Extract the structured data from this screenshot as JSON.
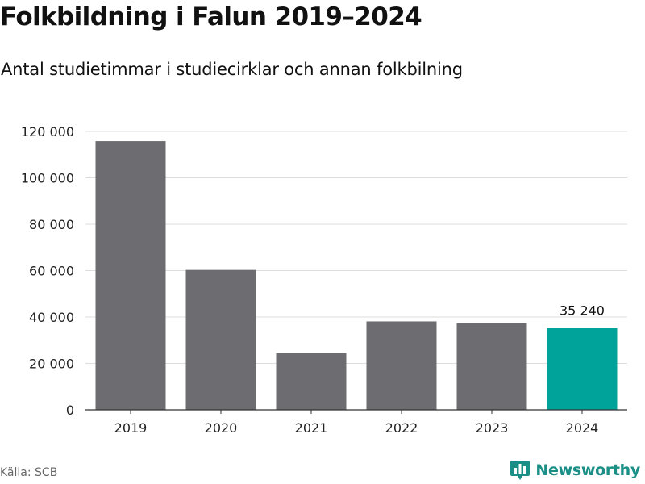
{
  "header": {
    "title": "Folkbildning i Falun 2019–2024",
    "subtitle": "Antal studietimmar i studiecirklar och annan folkbilning"
  },
  "footer": {
    "source": "Källa: SCB",
    "brand": "Newsworthy"
  },
  "colors": {
    "bar": "#6d6c71",
    "highlight": "#00a39a",
    "grid": "#dddddd",
    "axis": "#333333",
    "text": "#222222",
    "brand": "#1a8f86"
  },
  "chart_data": {
    "type": "bar",
    "title": "Folkbildning i Falun 2019–2024",
    "subtitle": "Antal studietimmar i studiecirklar och annan folkbilning",
    "xlabel": "",
    "ylabel": "",
    "categories": [
      "2019",
      "2020",
      "2021",
      "2022",
      "2023",
      "2024"
    ],
    "values": [
      115800,
      60300,
      24500,
      38100,
      37500,
      35240
    ],
    "highlight_category": "2024",
    "data_labels": [
      {
        "category": "2024",
        "text": "35 240"
      }
    ],
    "ylim": [
      0,
      120000
    ],
    "yticks": [
      0,
      20000,
      40000,
      60000,
      80000,
      100000,
      120000
    ],
    "ytick_labels": [
      "0",
      "20 000",
      "40 000",
      "60 000",
      "80 000",
      "100 000",
      "120 000"
    ],
    "grid": true,
    "legend": "none"
  }
}
